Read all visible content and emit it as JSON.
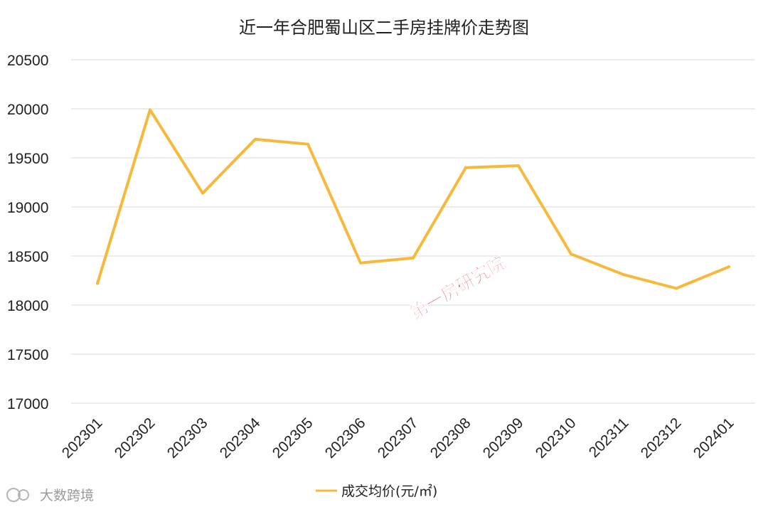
{
  "chart_data": {
    "type": "line",
    "title": "近一年合肥蜀山区二手房挂牌价走势图",
    "categories": [
      "202301",
      "202302",
      "202303",
      "202304",
      "202305",
      "202306",
      "202307",
      "202308",
      "202309",
      "202310",
      "202311",
      "202312",
      "202401"
    ],
    "series": [
      {
        "name": "成交均价(元/㎡)",
        "color": "#f6b93b",
        "values": [
          18220,
          19990,
          19140,
          19690,
          19640,
          18430,
          18480,
          19400,
          19420,
          18520,
          18310,
          18170,
          18390
        ]
      }
    ],
    "ylim": [
      17000,
      20500
    ],
    "yticks": [
      "17000",
      "17500",
      "18000",
      "18500",
      "19000",
      "19500",
      "20000",
      "20500"
    ],
    "grid": true,
    "legend_position": "bottom"
  },
  "watermarks": {
    "center_text": "第一房研究院",
    "corner_text": "大数跨境"
  }
}
